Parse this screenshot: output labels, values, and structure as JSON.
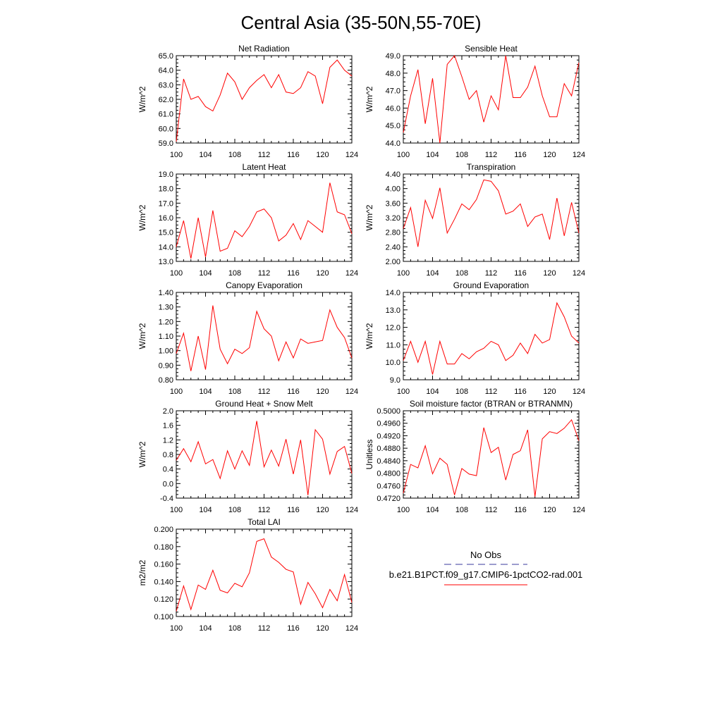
{
  "page_title": "Central Asia (35-50N,55-70E)",
  "legend": {
    "items": [
      {
        "label": "No Obs",
        "color": "#3a3a9e",
        "style": "dashed"
      },
      {
        "label": "b.e21.B1PCT.f09_g17.CMIP6-1pctCO2-rad.001",
        "color": "#ff0000",
        "style": "solid"
      }
    ]
  },
  "chart_data": [
    {
      "type": "line",
      "title": "Net Radiation",
      "ylabel": "W/m^2",
      "x": [
        100,
        101,
        102,
        103,
        104,
        105,
        106,
        107,
        108,
        109,
        110,
        111,
        112,
        113,
        114,
        115,
        116,
        117,
        118,
        119,
        120,
        121,
        122,
        123,
        124
      ],
      "xlim": [
        100,
        124
      ],
      "xticks": [
        "100",
        "104",
        "108",
        "112",
        "116",
        "120",
        "124"
      ],
      "ylim": [
        59.0,
        65.0
      ],
      "yticks": [
        "59.0",
        "60.0",
        "61.0",
        "62.0",
        "63.0",
        "64.0",
        "65.0"
      ],
      "series": [
        {
          "values": [
            59.1,
            63.4,
            62.0,
            62.2,
            61.5,
            61.2,
            62.3,
            63.8,
            63.2,
            62.0,
            62.8,
            63.3,
            63.7,
            62.8,
            63.7,
            62.5,
            62.4,
            62.8,
            63.9,
            63.6,
            61.7,
            64.2,
            64.7,
            64.0,
            63.6
          ],
          "color": "#ff0000"
        }
      ]
    },
    {
      "type": "line",
      "title": "Sensible Heat",
      "ylabel": "W/m^2",
      "x": [
        100,
        101,
        102,
        103,
        104,
        105,
        106,
        107,
        108,
        109,
        110,
        111,
        112,
        113,
        114,
        115,
        116,
        117,
        118,
        119,
        120,
        121,
        122,
        123,
        124
      ],
      "xlim": [
        100,
        124
      ],
      "xticks": [
        "100",
        "104",
        "108",
        "112",
        "116",
        "120",
        "124"
      ],
      "ylim": [
        44.0,
        49.0
      ],
      "yticks": [
        "44.0",
        "45.0",
        "46.0",
        "47.0",
        "48.0",
        "49.0"
      ],
      "series": [
        {
          "values": [
            44.6,
            46.7,
            48.2,
            45.1,
            47.7,
            44.0,
            48.5,
            49.0,
            47.8,
            46.5,
            47.0,
            45.2,
            46.7,
            45.9,
            49.0,
            46.6,
            46.6,
            47.2,
            48.4,
            46.7,
            45.5,
            45.5,
            47.4,
            46.7,
            48.6
          ],
          "color": "#ff0000"
        }
      ]
    },
    {
      "type": "line",
      "title": "Latent Heat",
      "ylabel": "W/m^2",
      "x": [
        100,
        101,
        102,
        103,
        104,
        105,
        106,
        107,
        108,
        109,
        110,
        111,
        112,
        113,
        114,
        115,
        116,
        117,
        118,
        119,
        120,
        121,
        122,
        123,
        124
      ],
      "xlim": [
        100,
        124
      ],
      "xticks": [
        "100",
        "104",
        "108",
        "112",
        "116",
        "120",
        "124"
      ],
      "ylim": [
        13.0,
        19.0
      ],
      "yticks": [
        "13.0",
        "14.0",
        "15.0",
        "16.0",
        "17.0",
        "18.0",
        "19.0"
      ],
      "series": [
        {
          "values": [
            14.0,
            15.8,
            13.2,
            16.0,
            13.3,
            16.5,
            13.7,
            13.9,
            15.1,
            14.7,
            15.4,
            16.4,
            16.6,
            16.0,
            14.4,
            14.8,
            15.6,
            14.5,
            15.8,
            15.4,
            15.0,
            18.4,
            16.4,
            16.2,
            14.9
          ],
          "color": "#ff0000"
        }
      ]
    },
    {
      "type": "line",
      "title": "Transpiration",
      "ylabel": "W/m^2",
      "x": [
        100,
        101,
        102,
        103,
        104,
        105,
        106,
        107,
        108,
        109,
        110,
        111,
        112,
        113,
        114,
        115,
        116,
        117,
        118,
        119,
        120,
        121,
        122,
        123,
        124
      ],
      "xlim": [
        100,
        124
      ],
      "xticks": [
        "100",
        "104",
        "108",
        "112",
        "116",
        "120",
        "124"
      ],
      "ylim": [
        2.0,
        4.4
      ],
      "yticks": [
        "2.00",
        "2.40",
        "2.80",
        "3.20",
        "3.60",
        "4.00",
        "4.40"
      ],
      "series": [
        {
          "values": [
            2.9,
            3.48,
            2.4,
            3.68,
            3.18,
            4.02,
            2.78,
            3.16,
            3.58,
            3.42,
            3.7,
            4.24,
            4.2,
            3.94,
            3.3,
            3.38,
            3.58,
            2.96,
            3.22,
            3.3,
            2.6,
            3.74,
            2.7,
            3.62,
            2.78
          ],
          "color": "#ff0000"
        }
      ]
    },
    {
      "type": "line",
      "title": "Canopy Evaporation",
      "ylabel": "W/m^2",
      "x": [
        100,
        101,
        102,
        103,
        104,
        105,
        106,
        107,
        108,
        109,
        110,
        111,
        112,
        113,
        114,
        115,
        116,
        117,
        118,
        119,
        120,
        121,
        122,
        123,
        124
      ],
      "xlim": [
        100,
        124
      ],
      "xticks": [
        "100",
        "104",
        "108",
        "112",
        "116",
        "120",
        "124"
      ],
      "ylim": [
        0.8,
        1.4
      ],
      "yticks": [
        "0.80",
        "0.90",
        "1.00",
        "1.10",
        "1.20",
        "1.30",
        "1.40"
      ],
      "series": [
        {
          "values": [
            0.98,
            1.12,
            0.86,
            1.1,
            0.87,
            1.31,
            1.01,
            0.91,
            1.01,
            0.98,
            1.02,
            1.27,
            1.15,
            1.1,
            0.93,
            1.06,
            0.95,
            1.08,
            1.05,
            1.06,
            1.07,
            1.28,
            1.16,
            1.09,
            0.95
          ],
          "color": "#ff0000"
        }
      ]
    },
    {
      "type": "line",
      "title": "Ground Evaporation",
      "ylabel": "W/m^2",
      "x": [
        100,
        101,
        102,
        103,
        104,
        105,
        106,
        107,
        108,
        109,
        110,
        111,
        112,
        113,
        114,
        115,
        116,
        117,
        118,
        119,
        120,
        121,
        122,
        123,
        124
      ],
      "xlim": [
        100,
        124
      ],
      "xticks": [
        "100",
        "104",
        "108",
        "112",
        "116",
        "120",
        "124"
      ],
      "ylim": [
        9.0,
        14.0
      ],
      "yticks": [
        "9.0",
        "10.0",
        "11.0",
        "12.0",
        "13.0",
        "14.0"
      ],
      "series": [
        {
          "values": [
            10.1,
            11.2,
            10.0,
            11.2,
            9.3,
            11.2,
            9.9,
            9.9,
            10.5,
            10.2,
            10.6,
            10.8,
            11.2,
            11.0,
            10.1,
            10.4,
            11.1,
            10.5,
            11.6,
            11.1,
            11.3,
            13.4,
            12.6,
            11.5,
            11.1
          ],
          "color": "#ff0000"
        }
      ]
    },
    {
      "type": "line",
      "title": "Ground Heat + Snow Melt",
      "ylabel": "W/m^2",
      "x": [
        100,
        101,
        102,
        103,
        104,
        105,
        106,
        107,
        108,
        109,
        110,
        111,
        112,
        113,
        114,
        115,
        116,
        117,
        118,
        119,
        120,
        121,
        122,
        123,
        124
      ],
      "xlim": [
        100,
        124
      ],
      "xticks": [
        "100",
        "104",
        "108",
        "112",
        "116",
        "120",
        "124"
      ],
      "ylim": [
        -0.4,
        2.0
      ],
      "yticks": [
        "-0.4",
        "0.0",
        "0.4",
        "0.8",
        "1.2",
        "1.6",
        "2.0"
      ],
      "series": [
        {
          "values": [
            0.64,
            0.96,
            0.6,
            1.15,
            0.54,
            0.66,
            0.14,
            0.9,
            0.4,
            0.9,
            0.5,
            1.72,
            0.46,
            0.92,
            0.48,
            1.22,
            0.26,
            1.2,
            -0.32,
            1.48,
            1.22,
            0.26,
            0.88,
            1.02,
            0.28
          ],
          "color": "#ff0000"
        }
      ]
    },
    {
      "type": "line",
      "title": "Soil moisture factor (BTRAN or BTRANMN)",
      "ylabel": "Unitless",
      "x": [
        100,
        101,
        102,
        103,
        104,
        105,
        106,
        107,
        108,
        109,
        110,
        111,
        112,
        113,
        114,
        115,
        116,
        117,
        118,
        119,
        120,
        121,
        122,
        123,
        124
      ],
      "xlim": [
        100,
        124
      ],
      "xticks": [
        "100",
        "104",
        "108",
        "112",
        "116",
        "120",
        "124"
      ],
      "ylim": [
        0.472,
        0.5
      ],
      "yticks": [
        "0.4720",
        "0.4760",
        "0.4800",
        "0.4840",
        "0.4880",
        "0.4920",
        "0.4960",
        "0.5000"
      ],
      "series": [
        {
          "values": [
            0.4736,
            0.4828,
            0.4817,
            0.4888,
            0.4798,
            0.4848,
            0.4828,
            0.473,
            0.4815,
            0.4797,
            0.4792,
            0.4946,
            0.4866,
            0.4883,
            0.4778,
            0.486,
            0.4872,
            0.4939,
            0.4725,
            0.491,
            0.4933,
            0.4927,
            0.4944,
            0.4971,
            0.4904
          ],
          "color": "#ff0000"
        }
      ]
    },
    {
      "type": "line",
      "title": "Total LAI",
      "ylabel": "m2/m2",
      "x": [
        100,
        101,
        102,
        103,
        104,
        105,
        106,
        107,
        108,
        109,
        110,
        111,
        112,
        113,
        114,
        115,
        116,
        117,
        118,
        119,
        120,
        121,
        122,
        123,
        124
      ],
      "xlim": [
        100,
        124
      ],
      "xticks": [
        "100",
        "104",
        "108",
        "112",
        "116",
        "120",
        "124"
      ],
      "ylim": [
        0.1,
        0.2
      ],
      "yticks": [
        "0.100",
        "0.120",
        "0.140",
        "0.160",
        "0.180",
        "0.200"
      ],
      "series": [
        {
          "values": [
            0.106,
            0.135,
            0.108,
            0.136,
            0.131,
            0.153,
            0.13,
            0.127,
            0.138,
            0.134,
            0.15,
            0.186,
            0.189,
            0.168,
            0.162,
            0.154,
            0.151,
            0.114,
            0.139,
            0.126,
            0.11,
            0.131,
            0.118,
            0.148,
            0.116
          ],
          "color": "#ff0000"
        }
      ]
    }
  ]
}
